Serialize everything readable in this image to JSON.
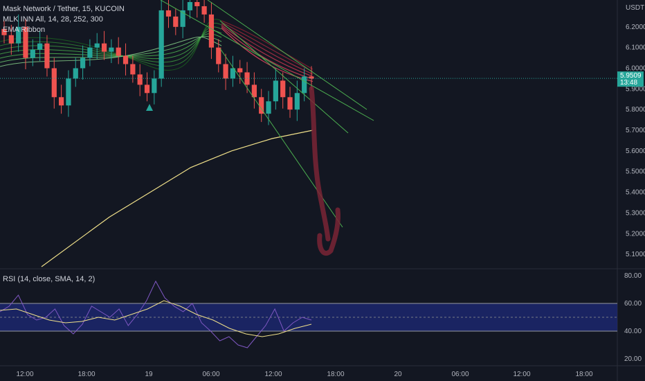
{
  "legend": {
    "symbol": "Mask Network / Tether, 15, KUCOIN",
    "indicator1": "MLK INN All, 14, 28, 252, 300",
    "indicator2": "EMA Ribbon"
  },
  "rsi_panel": {
    "label": "RSI (14, close, SMA, 14, 2)"
  },
  "price_axis": {
    "currency": "USDT"
  },
  "last_price": {
    "value": "5.9509",
    "countdown": "13:48"
  },
  "colors": {
    "background": "#131722",
    "up": "#26a69a",
    "down": "#ef5350",
    "ma_line": "#f0e08a",
    "trendline": "#4caf50",
    "rsi_band": "#1e2a78",
    "rsi_line": "#7e57c2",
    "rsi_ma": "#f0e08a",
    "arrow": "#7a2535"
  },
  "chart_data": [
    {
      "type": "candlestick",
      "title": "Mask Network / Tether, 15, KUCOIN",
      "ylim": [
        5.03,
        6.33
      ],
      "yticks": [
        "6.2000",
        "6.1000",
        "6.0000",
        "5.9000",
        "5.8000",
        "5.7000",
        "5.6000",
        "5.5000",
        "5.4000",
        "5.3000",
        "5.2000",
        "5.1000"
      ],
      "xticks": [
        "12:00",
        "18:00",
        "19",
        "06:00",
        "12:00",
        "18:00",
        "20",
        "06:00",
        "12:00",
        "18:00"
      ],
      "approx_closes": [
        6.16,
        6.12,
        6.2,
        6.05,
        6.09,
        6.12,
        6.0,
        5.86,
        5.82,
        5.95,
        6.0,
        6.05,
        6.1,
        6.12,
        6.08,
        6.1,
        6.06,
        6.02,
        5.97,
        5.92,
        5.88,
        5.95,
        6.28,
        6.25,
        6.2,
        6.28,
        6.32,
        6.3,
        6.26,
        6.1,
        6.02,
        5.95,
        6.0,
        5.98,
        5.92,
        5.86,
        5.78,
        5.84,
        5.94,
        5.86,
        5.8,
        5.88,
        5.96,
        5.95
      ],
      "moving_average_approx": [
        [
          0,
          5.04
        ],
        [
          50,
          5.28
        ],
        [
          80,
          5.4
        ],
        [
          110,
          5.52
        ],
        [
          140,
          5.6
        ],
        [
          170,
          5.66
        ],
        [
          200,
          5.7
        ]
      ],
      "annotations": [
        "descending channel",
        "projected drop arrow to about 5.1"
      ]
    },
    {
      "type": "line",
      "title": "RSI (14, close, SMA, 14, 2)",
      "ylim": [
        15,
        85
      ],
      "yticks": [
        "80.00",
        "60.00",
        "40.00",
        "20.00"
      ],
      "band": [
        40,
        60
      ],
      "midline": 50,
      "rsi_approx": [
        54,
        58,
        66,
        52,
        48,
        50,
        56,
        44,
        38,
        45,
        58,
        54,
        50,
        56,
        44,
        52,
        62,
        76,
        64,
        58,
        54,
        60,
        46,
        40,
        33,
        36,
        30,
        28,
        36,
        44,
        56,
        40,
        46,
        50,
        48
      ],
      "rsi_ma_approx": [
        55,
        56,
        52,
        48,
        46,
        47,
        50,
        48,
        52,
        56,
        62,
        58,
        52,
        48,
        42,
        38,
        36,
        38,
        42,
        45
      ]
    }
  ]
}
